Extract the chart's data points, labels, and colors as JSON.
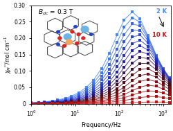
{
  "title": "B_{dc} = 0.3 T",
  "xlabel": "Frequency/Hz",
  "ylabel": "chi_M''/mol cm^-1",
  "xlim": [
    1,
    1500
  ],
  "ylim": [
    0,
    0.3
  ],
  "yticks": [
    0,
    0.05,
    0.1,
    0.15,
    0.2,
    0.25,
    0.3
  ],
  "n_curves": 17,
  "temp_min": 2,
  "temp_max": 10,
  "freq_points": [
    1.0,
    1.5,
    2.0,
    3.0,
    4.0,
    6.0,
    8.0,
    12.0,
    18.0,
    26.0,
    40.0,
    60.0,
    90.0,
    130.0,
    200.0,
    300.0,
    450.0,
    700.0,
    1000.0,
    1400.0
  ],
  "peak_freq_min": 200,
  "peak_freq_max": 600,
  "peak_amp_min": 0.005,
  "peak_amp_max": 0.28,
  "color_blue": "#4488ff",
  "color_red": "#cc1111",
  "background": "#ffffff",
  "label_2K": "2 K",
  "label_10K": "10 K"
}
